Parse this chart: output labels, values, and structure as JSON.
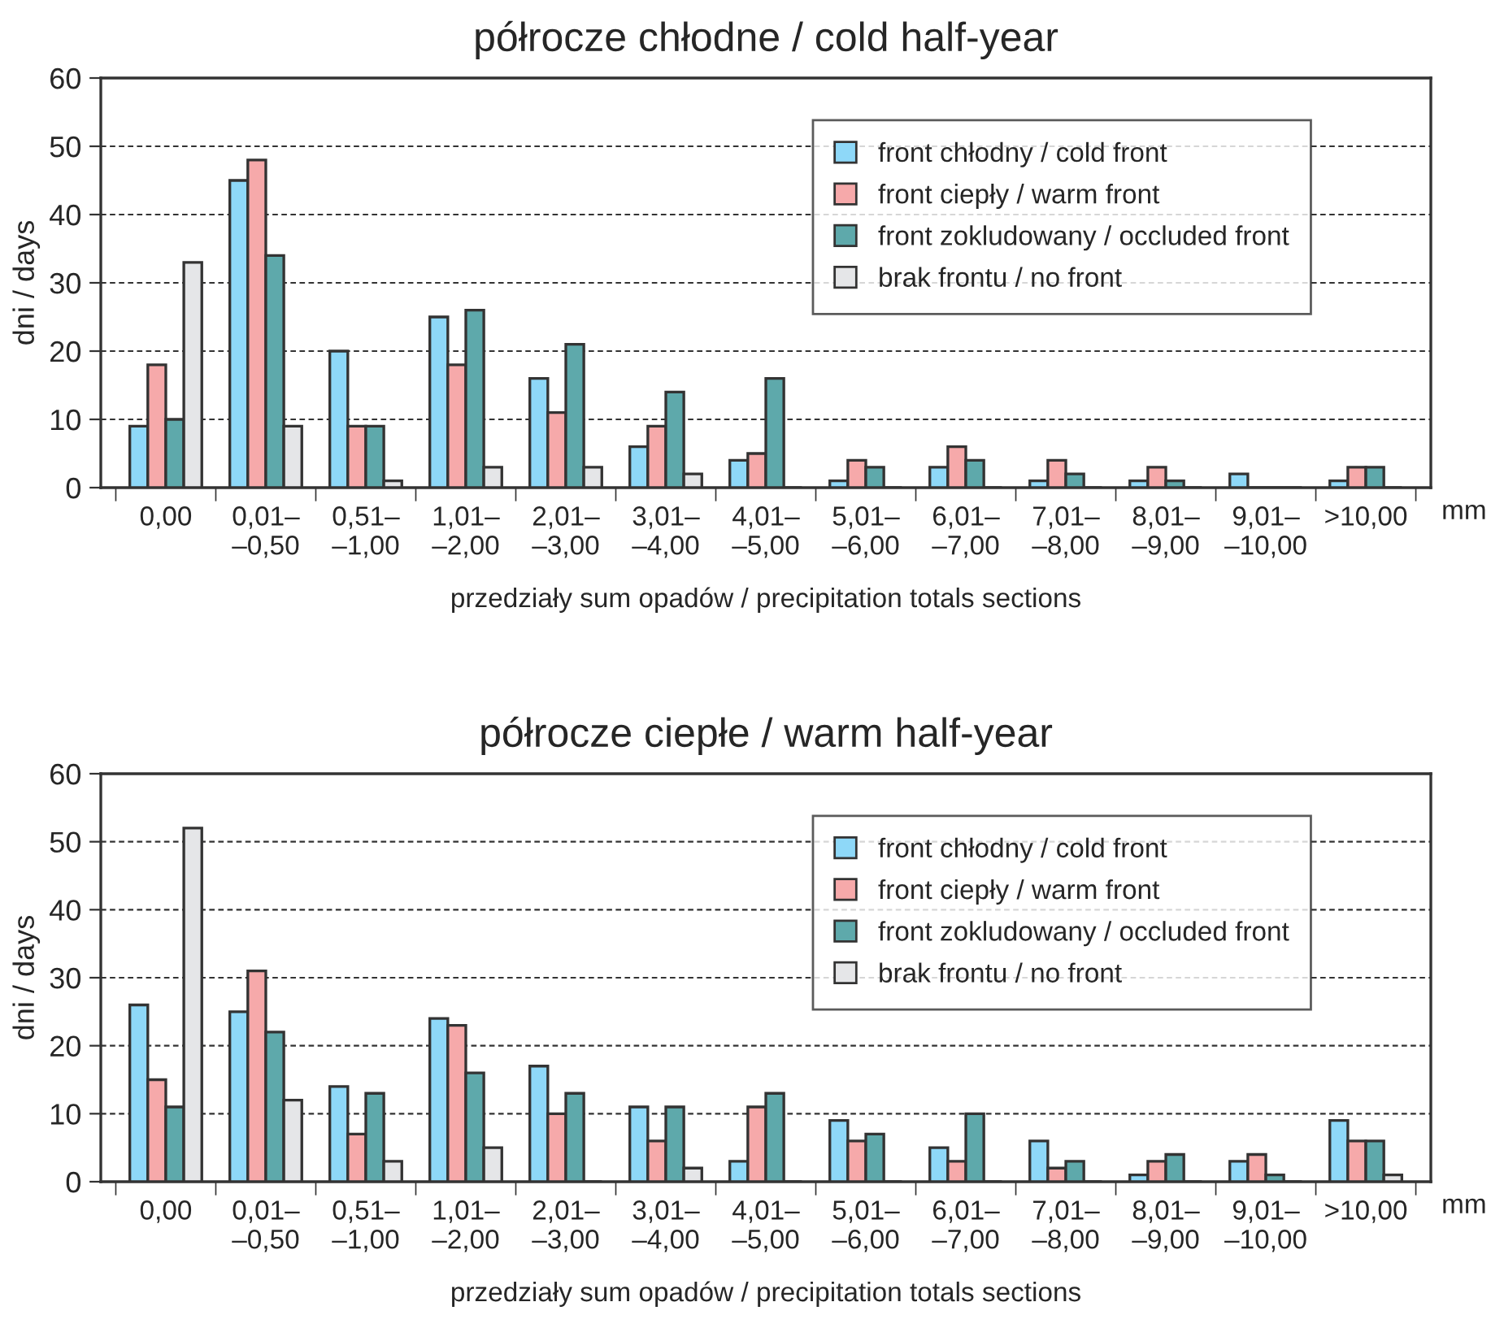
{
  "chart_data": [
    {
      "type": "bar",
      "title": "półrocze chłodne / cold half-year",
      "xlabel": "przedziały sum opadów / precipitation totals sections",
      "ylabel": "dni / days",
      "categories": [
        "0,00",
        "0,01–\n–0,50",
        "0,51–\n–1,00",
        "1,01–\n–2,00",
        "2,01–\n–3,00",
        "3,01–\n–4,00",
        "4,01–\n–5,00",
        "5,01–\n–6,00",
        "6,01–\n–7,00",
        "7,01–\n–8,00",
        "8,01–\n–9,00",
        "9,01–\n–10,00",
        ">10,00"
      ],
      "series": [
        {
          "name": "front chłodny / cold front",
          "color": "#8ed8f8",
          "values": [
            9,
            45,
            20,
            25,
            16,
            6,
            4,
            1,
            3,
            1,
            1,
            2,
            1
          ]
        },
        {
          "name": "front ciepły / warm front",
          "color": "#f6a9aa",
          "values": [
            18,
            48,
            9,
            18,
            11,
            9,
            5,
            4,
            6,
            4,
            3,
            0,
            3
          ]
        },
        {
          "name": "front zokludowany / occluded front",
          "color": "#5ea9ab",
          "values": [
            10,
            34,
            9,
            26,
            21,
            14,
            16,
            3,
            4,
            2,
            1,
            0,
            3
          ]
        },
        {
          "name": "brak frontu / no front",
          "color": "#e5e6e8",
          "values": [
            33,
            9,
            1,
            3,
            3,
            2,
            0,
            0,
            0,
            0,
            0,
            0,
            0
          ]
        }
      ],
      "ylim": [
        0,
        60
      ],
      "yticks": [
        0,
        10,
        20,
        30,
        40,
        50,
        60
      ],
      "grid": "y",
      "legend": "top right",
      "annotations": [
        "mm"
      ]
    },
    {
      "type": "bar",
      "title": "półrocze ciepłe / warm half-year",
      "xlabel": "przedziały sum opadów / precipitation totals sections",
      "ylabel": "dni / days",
      "categories": [
        "0,00",
        "0,01–\n–0,50",
        "0,51–\n–1,00",
        "1,01–\n–2,00",
        "2,01–\n–3,00",
        "3,01–\n–4,00",
        "4,01–\n–5,00",
        "5,01–\n–6,00",
        "6,01–\n–7,00",
        "7,01–\n–8,00",
        "8,01–\n–9,00",
        "9,01–\n–10,00",
        ">10,00"
      ],
      "series": [
        {
          "name": "front chłodny / cold front",
          "color": "#8ed8f8",
          "values": [
            26,
            25,
            14,
            24,
            17,
            11,
            3,
            9,
            5,
            6,
            1,
            3,
            9
          ]
        },
        {
          "name": "front ciepły / warm front",
          "color": "#f6a9aa",
          "values": [
            15,
            31,
            7,
            23,
            10,
            6,
            11,
            6,
            3,
            2,
            3,
            4,
            6
          ]
        },
        {
          "name": "front zokludowany / occluded front",
          "color": "#5ea9ab",
          "values": [
            11,
            22,
            13,
            16,
            13,
            11,
            13,
            7,
            10,
            3,
            4,
            1,
            6
          ]
        },
        {
          "name": "brak frontu / no front",
          "color": "#e5e6e8",
          "values": [
            52,
            12,
            3,
            5,
            0,
            2,
            0,
            0,
            0,
            0,
            0,
            0,
            1
          ]
        }
      ],
      "ylim": [
        0,
        60
      ],
      "yticks": [
        0,
        10,
        20,
        30,
        40,
        50,
        60
      ],
      "grid": "y",
      "legend": "top right",
      "annotations": [
        "mm"
      ]
    }
  ]
}
